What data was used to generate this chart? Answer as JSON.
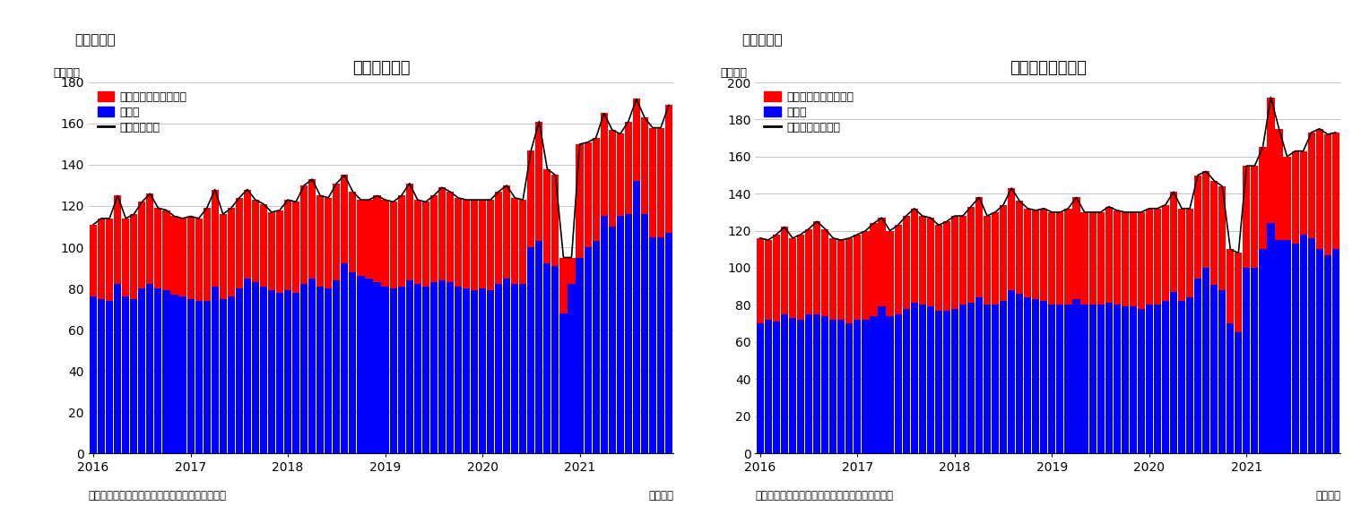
{
  "chart1": {
    "title": "住宅着工件数",
    "ylabel": "（万件）",
    "ylim": [
      0,
      180
    ],
    "yticks": [
      0,
      20,
      40,
      60,
      80,
      100,
      120,
      140,
      160,
      180
    ],
    "legend_line": "住宅着工件数",
    "legend_blue": "戸建て",
    "legend_red": "集合住宅（二戸以上）",
    "source": "（資料）センサス局よりニッセイ基礎研究所作成",
    "unit": "（月次）",
    "blue": [
      76,
      75,
      74,
      82,
      76,
      75,
      80,
      82,
      80,
      79,
      77,
      76,
      75,
      74,
      74,
      81,
      75,
      76,
      80,
      85,
      83,
      81,
      79,
      78,
      79,
      78,
      82,
      85,
      81,
      80,
      84,
      92,
      88,
      86,
      85,
      83,
      81,
      80,
      81,
      84,
      82,
      81,
      83,
      84,
      83,
      81,
      80,
      79,
      80,
      79,
      82,
      85,
      82,
      82,
      100,
      103,
      92,
      91,
      68,
      82,
      95,
      100,
      103,
      115,
      110,
      115,
      116,
      132,
      116,
      105,
      105,
      107
    ],
    "red": [
      35,
      39,
      40,
      43,
      38,
      41,
      42,
      44,
      39,
      39,
      38,
      38,
      40,
      40,
      45,
      47,
      41,
      43,
      44,
      43,
      40,
      40,
      38,
      40,
      44,
      44,
      48,
      48,
      44,
      44,
      47,
      43,
      39,
      37,
      38,
      42,
      42,
      42,
      44,
      47,
      41,
      41,
      42,
      45,
      44,
      43,
      43,
      44,
      43,
      44,
      45,
      45,
      42,
      41,
      47,
      58,
      46,
      44,
      27,
      13,
      55,
      51,
      50,
      50,
      47,
      40,
      45,
      40,
      47,
      53,
      53,
      62
    ]
  },
  "chart2": {
    "title": "住宅着工許可件数",
    "ylabel": "（万件）",
    "ylim": [
      0,
      200
    ],
    "yticks": [
      0,
      20,
      40,
      60,
      80,
      100,
      120,
      140,
      160,
      180,
      200
    ],
    "legend_line": "住宅建築許可件数",
    "legend_blue": "戸建て",
    "legend_red": "集合住宅（二戸以上）",
    "source": "（資料）センサス局よりニッセイ基礎研究所作成",
    "unit": "（月次）",
    "blue": [
      70,
      72,
      71,
      75,
      73,
      72,
      75,
      75,
      74,
      72,
      72,
      70,
      72,
      72,
      74,
      79,
      74,
      75,
      78,
      81,
      80,
      79,
      77,
      77,
      78,
      80,
      81,
      84,
      80,
      80,
      82,
      88,
      86,
      84,
      83,
      82,
      80,
      80,
      80,
      83,
      80,
      80,
      80,
      81,
      80,
      79,
      79,
      78,
      80,
      80,
      82,
      87,
      82,
      84,
      94,
      100,
      91,
      88,
      70,
      65,
      100,
      100,
      110,
      124,
      115,
      115,
      113,
      118,
      116,
      110,
      107,
      110
    ],
    "red": [
      46,
      43,
      47,
      47,
      43,
      46,
      46,
      50,
      47,
      44,
      43,
      46,
      46,
      48,
      50,
      48,
      46,
      48,
      50,
      51,
      48,
      48,
      46,
      48,
      50,
      48,
      52,
      54,
      48,
      50,
      52,
      55,
      50,
      48,
      48,
      50,
      50,
      50,
      52,
      55,
      50,
      50,
      50,
      52,
      51,
      51,
      51,
      52,
      52,
      52,
      52,
      54,
      50,
      48,
      56,
      52,
      56,
      56,
      40,
      43,
      55,
      55,
      55,
      68,
      60,
      45,
      50,
      45,
      57,
      65,
      65,
      63
    ]
  },
  "x_tick_positions": [
    0,
    12,
    24,
    36,
    48,
    60
  ],
  "x_tick_labels": [
    "2016",
    "2017",
    "2018",
    "2019",
    "2020",
    "2021"
  ],
  "fig1_label": "（図表１）",
  "fig2_label": "（図表２）",
  "bar_color_blue": "#0000FF",
  "bar_color_red": "#FF0000",
  "line_color": "#000000",
  "background_color": "#FFFFFF",
  "grid_color": "#BBBBBB"
}
